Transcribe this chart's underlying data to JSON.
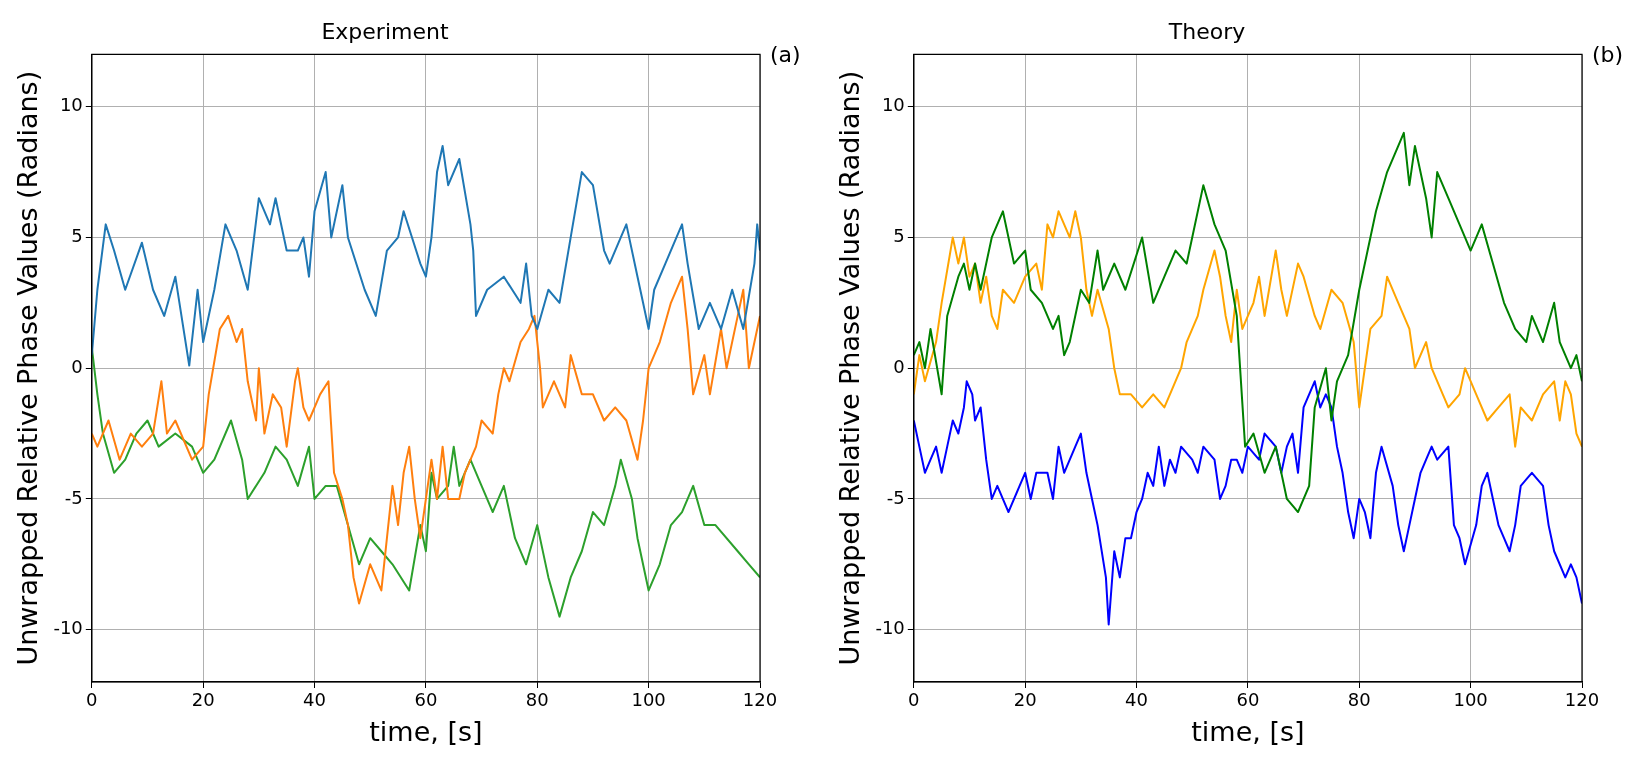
{
  "chart_data": [
    {
      "type": "line",
      "title": "Experiment",
      "xlabel": "time, [s]",
      "ylabel": "Unwrapped Relative Phase Values (Radians)",
      "annotations": [
        "(a)"
      ],
      "xlim": [
        0,
        120
      ],
      "ylim": [
        -12,
        12
      ],
      "xticks": [
        0,
        20,
        40,
        60,
        80,
        100,
        120
      ],
      "yticks": [
        -10,
        -5,
        0,
        5,
        10
      ],
      "grid": true,
      "legend": false,
      "marker": "none",
      "line_style": "solid",
      "series": [
        {
          "color": "#1f77b4",
          "x": [
            0,
            1,
            2.5,
            4,
            6,
            9,
            11,
            13,
            15,
            17.5,
            19,
            20,
            22,
            24,
            26,
            28,
            30,
            32,
            33,
            35,
            37,
            38,
            39,
            40,
            42,
            43,
            45,
            46,
            49,
            51,
            53,
            55,
            56,
            59,
            60,
            61,
            62,
            63,
            64,
            66,
            68,
            68.5,
            69,
            71,
            74,
            77,
            78,
            79,
            80,
            82,
            84,
            86,
            88,
            90,
            92,
            93,
            95,
            96,
            98,
            99,
            100,
            101,
            103,
            105,
            106,
            107,
            109,
            111,
            113,
            115,
            117,
            119,
            119.5,
            120
          ],
          "values": [
            0.5,
            3,
            5.5,
            4.5,
            3,
            4.8,
            3,
            2,
            3.5,
            0.1,
            3,
            1,
            3,
            5.5,
            4.5,
            3,
            6.5,
            5.5,
            6.5,
            4.5,
            4.5,
            5,
            3.5,
            6,
            7.5,
            5,
            7,
            5,
            3,
            2,
            4.5,
            5,
            6,
            4,
            3.5,
            5,
            7.5,
            8.5,
            7,
            8,
            5.5,
            4.5,
            2,
            3,
            3.5,
            2.5,
            4,
            2,
            1.5,
            3,
            2.5,
            5,
            7.5,
            7,
            4.5,
            4,
            5,
            5.5,
            3.5,
            2.5,
            1.5,
            3,
            4,
            5,
            5.5,
            4,
            1.5,
            2.5,
            1.5,
            3,
            1.5,
            4,
            5.5,
            4.5
          ]
        },
        {
          "color": "#ff7f0e",
          "x": [
            0,
            1,
            3,
            5,
            7,
            9,
            11,
            12.5,
            13.5,
            15,
            18,
            20,
            21,
            23,
            24.5,
            26,
            27,
            28,
            29.5,
            30,
            31,
            32.5,
            34,
            35,
            36.5,
            37,
            38,
            39,
            41,
            42.5,
            43.5,
            45,
            46,
            47,
            48,
            50,
            52,
            53,
            54,
            55,
            56,
            57,
            58,
            59,
            60,
            61,
            62,
            63,
            64,
            66,
            67,
            69,
            70,
            72,
            73,
            74,
            75,
            77,
            78.5,
            79.5,
            80.5,
            81,
            83,
            85,
            86,
            88,
            90,
            92,
            94,
            96,
            98,
            99,
            100,
            102,
            104,
            106,
            107,
            108,
            110,
            111,
            113,
            114,
            116,
            117,
            118,
            120
          ],
          "values": [
            -2.5,
            -3,
            -2,
            -3.5,
            -2.5,
            -3,
            -2.5,
            -0.5,
            -2.5,
            -2,
            -3.5,
            -3,
            -1,
            1.5,
            2,
            1,
            1.5,
            -0.5,
            -2,
            0,
            -2.5,
            -1,
            -1.5,
            -3,
            -0.5,
            0,
            -1.5,
            -2,
            -1,
            -0.5,
            -4,
            -5,
            -6,
            -8,
            -9,
            -7.5,
            -8.5,
            -6.5,
            -4.5,
            -6,
            -4,
            -3,
            -5,
            -6.5,
            -5,
            -3.5,
            -5,
            -3,
            -5,
            -5,
            -4,
            -3,
            -2,
            -2.5,
            -1,
            0,
            -0.5,
            1,
            1.5,
            2,
            0,
            -1.5,
            -0.5,
            -1.5,
            0.5,
            -1,
            -1,
            -2,
            -1.5,
            -2,
            -3.5,
            -2,
            0,
            1,
            2.5,
            3.5,
            1.5,
            -1,
            0.5,
            -1,
            1.5,
            0,
            2,
            3,
            0,
            2
          ]
        },
        {
          "color": "#2ca02c",
          "x": [
            0,
            1,
            2,
            4,
            6,
            8,
            10,
            12,
            15,
            18,
            20,
            22,
            25,
            27,
            28,
            31,
            33,
            35,
            37,
            39,
            40,
            42,
            44,
            46,
            48,
            50,
            52,
            54,
            57,
            59,
            60,
            61,
            62,
            64,
            65,
            66,
            68,
            70,
            72,
            74,
            76,
            78,
            80,
            82,
            84,
            86,
            88,
            90,
            92,
            94,
            95,
            97,
            98,
            100,
            102,
            104,
            106,
            108,
            110,
            112,
            116,
            118,
            120
          ],
          "values": [
            0.8,
            -1,
            -2.5,
            -4,
            -3.5,
            -2.5,
            -2,
            -3,
            -2.5,
            -3,
            -4,
            -3.5,
            -2,
            -3.5,
            -5,
            -4,
            -3,
            -3.5,
            -4.5,
            -3,
            -5,
            -4.5,
            -4.5,
            -6,
            -7.5,
            -6.5,
            -7,
            -7.5,
            -8.5,
            -6,
            -7,
            -4,
            -5,
            -4.5,
            -3,
            -4.5,
            -3.5,
            -4.5,
            -5.5,
            -4.5,
            -6.5,
            -7.5,
            -6,
            -8,
            -9.5,
            -8,
            -7,
            -5.5,
            -6,
            -4.5,
            -3.5,
            -5,
            -6.5,
            -8.5,
            -7.5,
            -6,
            -5.5,
            -4.5,
            -6,
            -6,
            -7,
            -7.5,
            -8
          ]
        }
      ]
    },
    {
      "type": "line",
      "title": "Theory",
      "xlabel": "time, [s]",
      "ylabel": "Unwrapped Relative Phase Values (Radians)",
      "annotations": [
        "(b)"
      ],
      "xlim": [
        0,
        120
      ],
      "ylim": [
        -12,
        12
      ],
      "xticks": [
        0,
        20,
        40,
        60,
        80,
        100,
        120
      ],
      "yticks": [
        -10,
        -5,
        0,
        5,
        10
      ],
      "grid": true,
      "legend": false,
      "marker": "none",
      "line_style": "solid",
      "series": [
        {
          "color": "#008000",
          "x": [
            0,
            1,
            2,
            3,
            5,
            6,
            8,
            9,
            10,
            11,
            12,
            14,
            16,
            18,
            20,
            21,
            23,
            25,
            26,
            27,
            28,
            30,
            31.5,
            33,
            34,
            36,
            38,
            41,
            43,
            45,
            47,
            49,
            50,
            52,
            54,
            56,
            58,
            59.5,
            61,
            63,
            65,
            67,
            69,
            71,
            72,
            74,
            75,
            76,
            78,
            80,
            81.5,
            83,
            85,
            88,
            89,
            90,
            92,
            93,
            94,
            96,
            98,
            100,
            102,
            104,
            106,
            108,
            110,
            111,
            113,
            115,
            116,
            118,
            119,
            120
          ],
          "values": [
            0.5,
            1,
            0,
            1.5,
            -1,
            2,
            3.5,
            4,
            3,
            4,
            3,
            5,
            6,
            4,
            4.5,
            3,
            2.5,
            1.5,
            2,
            0.5,
            1,
            3,
            2.5,
            4.5,
            3,
            4,
            3,
            5,
            2.5,
            3.5,
            4.5,
            4,
            5,
            7,
            5.5,
            4.5,
            2,
            -3,
            -2.5,
            -4,
            -3,
            -5,
            -5.5,
            -4.5,
            -1.5,
            0,
            -2,
            -0.5,
            0.5,
            3,
            4.5,
            6,
            7.5,
            9,
            7,
            8.5,
            6.5,
            5,
            7.5,
            6.5,
            5.5,
            4.5,
            5.5,
            4,
            2.5,
            1.5,
            1,
            2,
            1,
            2.5,
            1,
            0,
            0.5,
            -0.5
          ]
        },
        {
          "color": "#ffa500",
          "x": [
            0,
            1,
            2,
            4,
            5,
            7,
            8,
            9,
            10,
            11,
            12,
            13,
            14,
            15,
            16,
            18,
            20,
            22,
            23,
            24,
            25,
            26,
            28,
            29,
            30,
            31,
            32,
            33,
            35,
            36,
            37,
            39,
            41,
            43,
            45,
            46,
            48,
            49,
            51,
            52,
            54,
            55,
            56,
            57,
            58,
            59,
            61,
            62,
            63,
            65,
            66,
            67,
            69,
            70,
            72,
            73,
            75,
            77,
            79,
            80,
            81,
            82,
            84,
            85,
            87,
            88,
            89,
            90,
            92,
            93,
            95,
            96,
            98,
            99,
            101,
            103,
            105,
            107,
            108,
            109,
            111,
            113,
            115,
            116,
            117,
            118,
            119,
            120
          ],
          "values": [
            -1,
            0.5,
            -0.5,
            1,
            2.5,
            5,
            4,
            5,
            3.5,
            4,
            2.5,
            3.5,
            2,
            1.5,
            3,
            2.5,
            3.5,
            4,
            3,
            5.5,
            5,
            6,
            5,
            6,
            5,
            3,
            2,
            3,
            1.5,
            0,
            -1,
            -1,
            -1.5,
            -1,
            -1.5,
            -1,
            0,
            1,
            2,
            3,
            4.5,
            3.5,
            2,
            1,
            3,
            1.5,
            2.5,
            3.5,
            2,
            4.5,
            3,
            2,
            4,
            3.5,
            2,
            1.5,
            3,
            2.5,
            1,
            -1.5,
            0,
            1.5,
            2,
            3.5,
            2.5,
            2,
            1.5,
            0,
            1,
            0,
            -1,
            -1.5,
            -1,
            0,
            -1,
            -2,
            -1.5,
            -1,
            -3,
            -1.5,
            -2,
            -1,
            -0.5,
            -2,
            -0.5,
            -1,
            -2.5,
            -3
          ]
        },
        {
          "color": "#0000ff",
          "x": [
            0,
            1,
            2,
            3,
            4,
            5,
            6,
            7,
            8,
            9,
            9.5,
            10.5,
            11,
            12,
            13,
            14,
            15,
            17,
            19,
            20,
            21,
            22,
            24,
            25,
            26,
            27,
            29,
            30,
            31,
            32,
            33,
            34.5,
            35,
            36,
            37,
            38,
            39,
            40,
            41,
            42,
            43,
            44,
            45,
            46,
            47,
            48,
            50,
            51,
            52,
            54,
            55,
            56,
            57,
            58,
            59,
            60,
            62,
            63,
            65,
            66,
            67,
            68,
            69,
            70,
            72,
            73,
            74,
            75,
            76,
            77,
            78,
            79,
            80,
            81,
            82,
            83,
            84,
            86,
            87,
            88,
            89,
            90,
            91,
            92,
            93,
            94,
            96,
            97,
            98,
            99,
            101,
            102,
            103,
            104,
            105,
            106,
            107,
            108,
            109,
            111,
            113,
            114,
            115,
            117,
            118,
            119,
            120
          ],
          "values": [
            -2,
            -3,
            -4,
            -3.5,
            -3,
            -4,
            -3,
            -2,
            -2.5,
            -1.5,
            -0.5,
            -1,
            -2,
            -1.5,
            -3.5,
            -5,
            -4.5,
            -5.5,
            -4.5,
            -4,
            -5,
            -4,
            -4,
            -5,
            -3,
            -4,
            -3,
            -2.5,
            -4,
            -5,
            -6,
            -8,
            -9.8,
            -7,
            -8,
            -6.5,
            -6.5,
            -5.5,
            -5,
            -4,
            -4.5,
            -3,
            -4.5,
            -3.5,
            -4,
            -3,
            -3.5,
            -4,
            -3,
            -3.5,
            -5,
            -4.5,
            -3.5,
            -3.5,
            -4,
            -3,
            -3.5,
            -2.5,
            -3,
            -4,
            -3,
            -2.5,
            -4,
            -1.5,
            -0.5,
            -1.5,
            -1,
            -1.5,
            -3,
            -4,
            -5.5,
            -6.5,
            -5,
            -5.5,
            -6.5,
            -4,
            -3,
            -4.5,
            -6,
            -7,
            -6,
            -5,
            -4,
            -3.5,
            -3,
            -3.5,
            -3,
            -6,
            -6.5,
            -7.5,
            -6,
            -4.5,
            -4,
            -5,
            -6,
            -6.5,
            -7,
            -6,
            -4.5,
            -4,
            -4.5,
            -6,
            -7,
            -8,
            -7.5,
            -8,
            -9
          ]
        }
      ]
    }
  ]
}
